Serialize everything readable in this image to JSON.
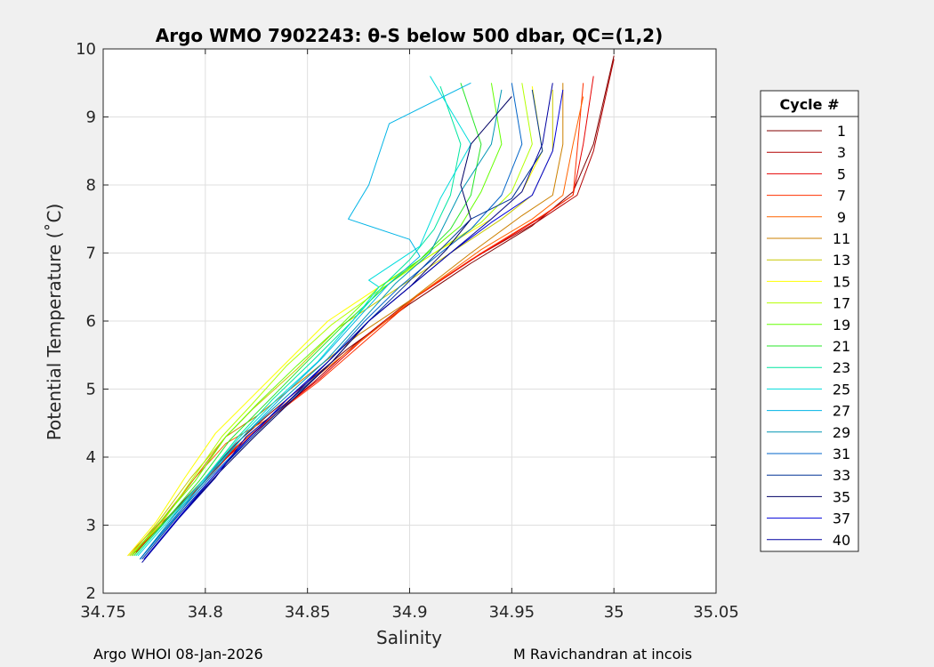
{
  "chart_data": {
    "type": "line",
    "title": "Argo WMO 7902243: θ-S below 500 dbar,  QC=(1,2)",
    "xlabel": "Salinity",
    "ylabel": "Potential Temperature (˚C)",
    "xlim": [
      34.75,
      35.05
    ],
    "ylim": [
      2,
      10
    ],
    "xticks": [
      34.75,
      34.8,
      34.85,
      34.9,
      34.95,
      35,
      35.05
    ],
    "xtick_labels": [
      "34.75",
      "34.8",
      "34.85",
      "34.9",
      "34.95",
      "35",
      "35.05"
    ],
    "yticks": [
      2,
      3,
      4,
      5,
      6,
      7,
      8,
      9,
      10
    ],
    "ytick_labels": [
      "2",
      "3",
      "4",
      "5",
      "6",
      "7",
      "8",
      "9",
      "10"
    ],
    "grid": true,
    "legend_title": "Cycle #",
    "legend_position": "outside-right",
    "series": [
      {
        "name": "1",
        "color": "#800000",
        "values": [
          [
            34.763,
            2.55
          ],
          [
            34.778,
            3.0
          ],
          [
            34.797,
            3.6
          ],
          [
            34.815,
            4.2
          ],
          [
            34.83,
            4.6
          ],
          [
            34.85,
            5.1
          ],
          [
            34.87,
            5.6
          ],
          [
            34.9,
            6.25
          ],
          [
            34.93,
            6.85
          ],
          [
            34.96,
            7.4
          ],
          [
            34.98,
            7.9
          ],
          [
            34.99,
            8.6
          ],
          [
            35.0,
            9.9
          ]
        ]
      },
      {
        "name": "3",
        "color": "#b40000",
        "values": [
          [
            34.765,
            2.6
          ],
          [
            34.78,
            3.05
          ],
          [
            34.8,
            3.65
          ],
          [
            34.817,
            4.2
          ],
          [
            34.835,
            4.65
          ],
          [
            34.853,
            5.1
          ],
          [
            34.873,
            5.65
          ],
          [
            34.9,
            6.3
          ],
          [
            34.93,
            6.9
          ],
          [
            34.962,
            7.45
          ],
          [
            34.982,
            7.85
          ],
          [
            34.99,
            8.5
          ],
          [
            35.0,
            9.85
          ]
        ]
      },
      {
        "name": "5",
        "color": "#e60000",
        "values": [
          [
            34.766,
            2.6
          ],
          [
            34.782,
            3.1
          ],
          [
            34.8,
            3.7
          ],
          [
            34.82,
            4.25
          ],
          [
            34.837,
            4.7
          ],
          [
            34.856,
            5.15
          ],
          [
            34.876,
            5.7
          ],
          [
            34.903,
            6.35
          ],
          [
            34.933,
            6.95
          ],
          [
            34.963,
            7.5
          ],
          [
            34.98,
            7.85
          ],
          [
            34.985,
            8.6
          ],
          [
            34.99,
            9.6
          ]
        ]
      },
      {
        "name": "7",
        "color": "#ff3000",
        "values": [
          [
            34.764,
            2.55
          ],
          [
            34.78,
            3.05
          ],
          [
            34.798,
            3.6
          ],
          [
            34.815,
            4.15
          ],
          [
            34.833,
            4.6
          ],
          [
            34.855,
            5.1
          ],
          [
            34.878,
            5.7
          ],
          [
            34.905,
            6.4
          ],
          [
            34.935,
            7.0
          ],
          [
            34.965,
            7.55
          ],
          [
            34.98,
            7.85
          ],
          [
            34.982,
            8.5
          ],
          [
            34.985,
            9.5
          ]
        ]
      },
      {
        "name": "9",
        "color": "#ff6400",
        "values": [
          [
            34.765,
            2.6
          ],
          [
            34.78,
            3.1
          ],
          [
            34.795,
            3.7
          ],
          [
            34.81,
            4.2
          ],
          [
            34.83,
            4.55
          ],
          [
            34.855,
            5.2
          ],
          [
            34.88,
            5.8
          ],
          [
            34.905,
            6.4
          ],
          [
            34.935,
            7.05
          ],
          [
            34.96,
            7.5
          ],
          [
            34.975,
            7.85
          ],
          [
            34.98,
            8.6
          ],
          [
            34.985,
            9.3
          ]
        ]
      },
      {
        "name": "11",
        "color": "#cc8000",
        "values": [
          [
            34.762,
            2.55
          ],
          [
            34.778,
            3.05
          ],
          [
            34.795,
            3.7
          ],
          [
            34.81,
            4.3
          ],
          [
            34.825,
            4.6
          ],
          [
            34.85,
            5.2
          ],
          [
            34.875,
            5.8
          ],
          [
            34.9,
            6.3
          ],
          [
            34.93,
            7.0
          ],
          [
            34.955,
            7.55
          ],
          [
            34.97,
            7.85
          ],
          [
            34.975,
            8.6
          ],
          [
            34.975,
            9.5
          ]
        ]
      },
      {
        "name": "13",
        "color": "#c8c800",
        "values": [
          [
            34.763,
            2.55
          ],
          [
            34.777,
            3.05
          ],
          [
            34.793,
            3.7
          ],
          [
            34.81,
            4.3
          ],
          [
            34.823,
            4.7
          ],
          [
            34.845,
            5.3
          ],
          [
            34.865,
            5.9
          ],
          [
            34.89,
            6.4
          ],
          [
            34.92,
            7.0
          ],
          [
            34.945,
            7.5
          ],
          [
            34.96,
            7.85
          ],
          [
            34.97,
            8.5
          ],
          [
            34.97,
            9.4
          ]
        ]
      },
      {
        "name": "15",
        "color": "#ffff00",
        "values": [
          [
            34.762,
            2.55
          ],
          [
            34.776,
            3.05
          ],
          [
            34.79,
            3.7
          ],
          [
            34.805,
            4.35
          ],
          [
            34.82,
            4.8
          ],
          [
            34.84,
            5.4
          ],
          [
            34.86,
            6.0
          ],
          [
            34.885,
            6.5
          ],
          [
            34.915,
            7.05
          ],
          [
            34.94,
            7.5
          ],
          [
            34.955,
            7.9
          ],
          [
            34.965,
            8.5
          ],
          [
            34.96,
            9.45
          ]
        ]
      },
      {
        "name": "17",
        "color": "#b4ff00",
        "values": [
          [
            34.763,
            2.55
          ],
          [
            34.778,
            3.0
          ],
          [
            34.793,
            3.65
          ],
          [
            34.808,
            4.3
          ],
          [
            34.822,
            4.75
          ],
          [
            34.84,
            5.35
          ],
          [
            34.862,
            5.95
          ],
          [
            34.885,
            6.45
          ],
          [
            34.912,
            7.0
          ],
          [
            34.935,
            7.45
          ],
          [
            34.95,
            7.9
          ],
          [
            34.96,
            8.6
          ],
          [
            34.955,
            9.5
          ]
        ]
      },
      {
        "name": "19",
        "color": "#64ff00",
        "values": [
          [
            34.764,
            2.55
          ],
          [
            34.778,
            3.05
          ],
          [
            34.795,
            3.65
          ],
          [
            34.81,
            4.3
          ],
          [
            34.826,
            4.8
          ],
          [
            34.845,
            5.35
          ],
          [
            34.865,
            5.9
          ],
          [
            34.885,
            6.5
          ],
          [
            34.905,
            6.9
          ],
          [
            34.925,
            7.4
          ],
          [
            34.935,
            7.9
          ],
          [
            34.945,
            8.6
          ],
          [
            34.94,
            9.5
          ]
        ]
      },
      {
        "name": "21",
        "color": "#28e628",
        "values": [
          [
            34.765,
            2.55
          ],
          [
            34.78,
            3.05
          ],
          [
            34.797,
            3.65
          ],
          [
            34.812,
            4.25
          ],
          [
            34.83,
            4.8
          ],
          [
            34.848,
            5.35
          ],
          [
            34.868,
            5.95
          ],
          [
            34.888,
            6.5
          ],
          [
            34.905,
            6.9
          ],
          [
            34.92,
            7.35
          ],
          [
            34.93,
            7.85
          ],
          [
            34.935,
            8.6
          ],
          [
            34.925,
            9.5
          ]
        ]
      },
      {
        "name": "23",
        "color": "#00e6a0",
        "values": [
          [
            34.766,
            2.55
          ],
          [
            34.782,
            3.1
          ],
          [
            34.8,
            3.7
          ],
          [
            34.816,
            4.3
          ],
          [
            34.833,
            4.85
          ],
          [
            34.852,
            5.4
          ],
          [
            34.872,
            6.0
          ],
          [
            34.888,
            6.55
          ],
          [
            34.9,
            6.9
          ],
          [
            34.912,
            7.35
          ],
          [
            34.92,
            7.85
          ],
          [
            34.925,
            8.6
          ],
          [
            34.915,
            9.45
          ]
        ]
      },
      {
        "name": "25",
        "color": "#00dcdc",
        "values": [
          [
            34.767,
            2.55
          ],
          [
            34.783,
            3.1
          ],
          [
            34.8,
            3.7
          ],
          [
            34.817,
            4.3
          ],
          [
            34.835,
            4.85
          ],
          [
            34.855,
            5.4
          ],
          [
            34.872,
            6.0
          ],
          [
            34.885,
            6.5
          ],
          [
            34.88,
            6.6
          ],
          [
            34.905,
            7.1
          ],
          [
            34.915,
            7.8
          ],
          [
            34.93,
            8.6
          ],
          [
            34.91,
            9.6
          ]
        ]
      },
      {
        "name": "27",
        "color": "#00b4e6",
        "values": [
          [
            34.768,
            2.5
          ],
          [
            34.785,
            3.1
          ],
          [
            34.802,
            3.75
          ],
          [
            34.82,
            4.35
          ],
          [
            34.838,
            4.9
          ],
          [
            34.857,
            5.45
          ],
          [
            34.875,
            6.05
          ],
          [
            34.89,
            6.55
          ],
          [
            34.905,
            6.95
          ],
          [
            34.9,
            7.2
          ],
          [
            34.87,
            7.5
          ],
          [
            34.88,
            8.0
          ],
          [
            34.89,
            8.9
          ],
          [
            34.93,
            9.5
          ]
        ]
      },
      {
        "name": "29",
        "color": "#0096b4",
        "values": [
          [
            34.768,
            2.5
          ],
          [
            34.785,
            3.15
          ],
          [
            34.803,
            3.75
          ],
          [
            34.82,
            4.35
          ],
          [
            34.84,
            4.9
          ],
          [
            34.86,
            5.45
          ],
          [
            34.878,
            6.05
          ],
          [
            34.893,
            6.55
          ],
          [
            34.91,
            7.0
          ],
          [
            34.915,
            7.3
          ],
          [
            34.925,
            7.9
          ],
          [
            34.94,
            8.6
          ],
          [
            34.945,
            9.4
          ]
        ]
      },
      {
        "name": "31",
        "color": "#0064c8",
        "values": [
          [
            34.768,
            2.5
          ],
          [
            34.786,
            3.15
          ],
          [
            34.804,
            3.75
          ],
          [
            34.822,
            4.3
          ],
          [
            34.84,
            4.85
          ],
          [
            34.86,
            5.4
          ],
          [
            34.878,
            6.0
          ],
          [
            34.895,
            6.5
          ],
          [
            34.915,
            7.0
          ],
          [
            34.93,
            7.35
          ],
          [
            34.945,
            7.85
          ],
          [
            34.955,
            8.6
          ],
          [
            34.95,
            9.5
          ]
        ]
      },
      {
        "name": "33",
        "color": "#003296",
        "values": [
          [
            34.769,
            2.5
          ],
          [
            34.787,
            3.15
          ],
          [
            34.805,
            3.75
          ],
          [
            34.823,
            4.3
          ],
          [
            34.842,
            4.85
          ],
          [
            34.862,
            5.4
          ],
          [
            34.88,
            6.0
          ],
          [
            34.897,
            6.5
          ],
          [
            34.915,
            7.05
          ],
          [
            34.93,
            7.5
          ],
          [
            34.95,
            7.8
          ],
          [
            34.965,
            8.5
          ],
          [
            34.96,
            9.4
          ]
        ]
      },
      {
        "name": "35",
        "color": "#000064",
        "values": [
          [
            34.77,
            2.5
          ],
          [
            34.788,
            3.15
          ],
          [
            34.806,
            3.75
          ],
          [
            34.824,
            4.3
          ],
          [
            34.843,
            4.85
          ],
          [
            34.862,
            5.4
          ],
          [
            34.88,
            6.0
          ],
          [
            34.9,
            6.5
          ],
          [
            34.918,
            7.05
          ],
          [
            34.93,
            7.5
          ],
          [
            34.925,
            8.0
          ],
          [
            34.93,
            8.6
          ],
          [
            34.95,
            9.3
          ]
        ]
      },
      {
        "name": "37",
        "color": "#0000dc",
        "values": [
          [
            34.77,
            2.5
          ],
          [
            34.788,
            3.15
          ],
          [
            34.805,
            3.75
          ],
          [
            34.822,
            4.3
          ],
          [
            34.84,
            4.85
          ],
          [
            34.86,
            5.4
          ],
          [
            34.88,
            6.0
          ],
          [
            34.9,
            6.5
          ],
          [
            34.92,
            7.0
          ],
          [
            34.94,
            7.45
          ],
          [
            34.96,
            7.85
          ],
          [
            34.97,
            8.5
          ],
          [
            34.975,
            9.4
          ]
        ]
      },
      {
        "name": "40",
        "color": "#0000a0",
        "values": [
          [
            34.769,
            2.45
          ],
          [
            34.787,
            3.1
          ],
          [
            34.805,
            3.7
          ],
          [
            34.82,
            4.3
          ],
          [
            34.84,
            4.8
          ],
          [
            34.86,
            5.4
          ],
          [
            34.88,
            6.0
          ],
          [
            34.9,
            6.5
          ],
          [
            34.92,
            7.0
          ],
          [
            34.94,
            7.5
          ],
          [
            34.955,
            7.9
          ],
          [
            34.965,
            8.6
          ],
          [
            34.97,
            9.5
          ]
        ]
      }
    ]
  },
  "footer": {
    "left": "Argo WHOI 08-Jan-2026",
    "right": "M Ravichandran at incois"
  }
}
